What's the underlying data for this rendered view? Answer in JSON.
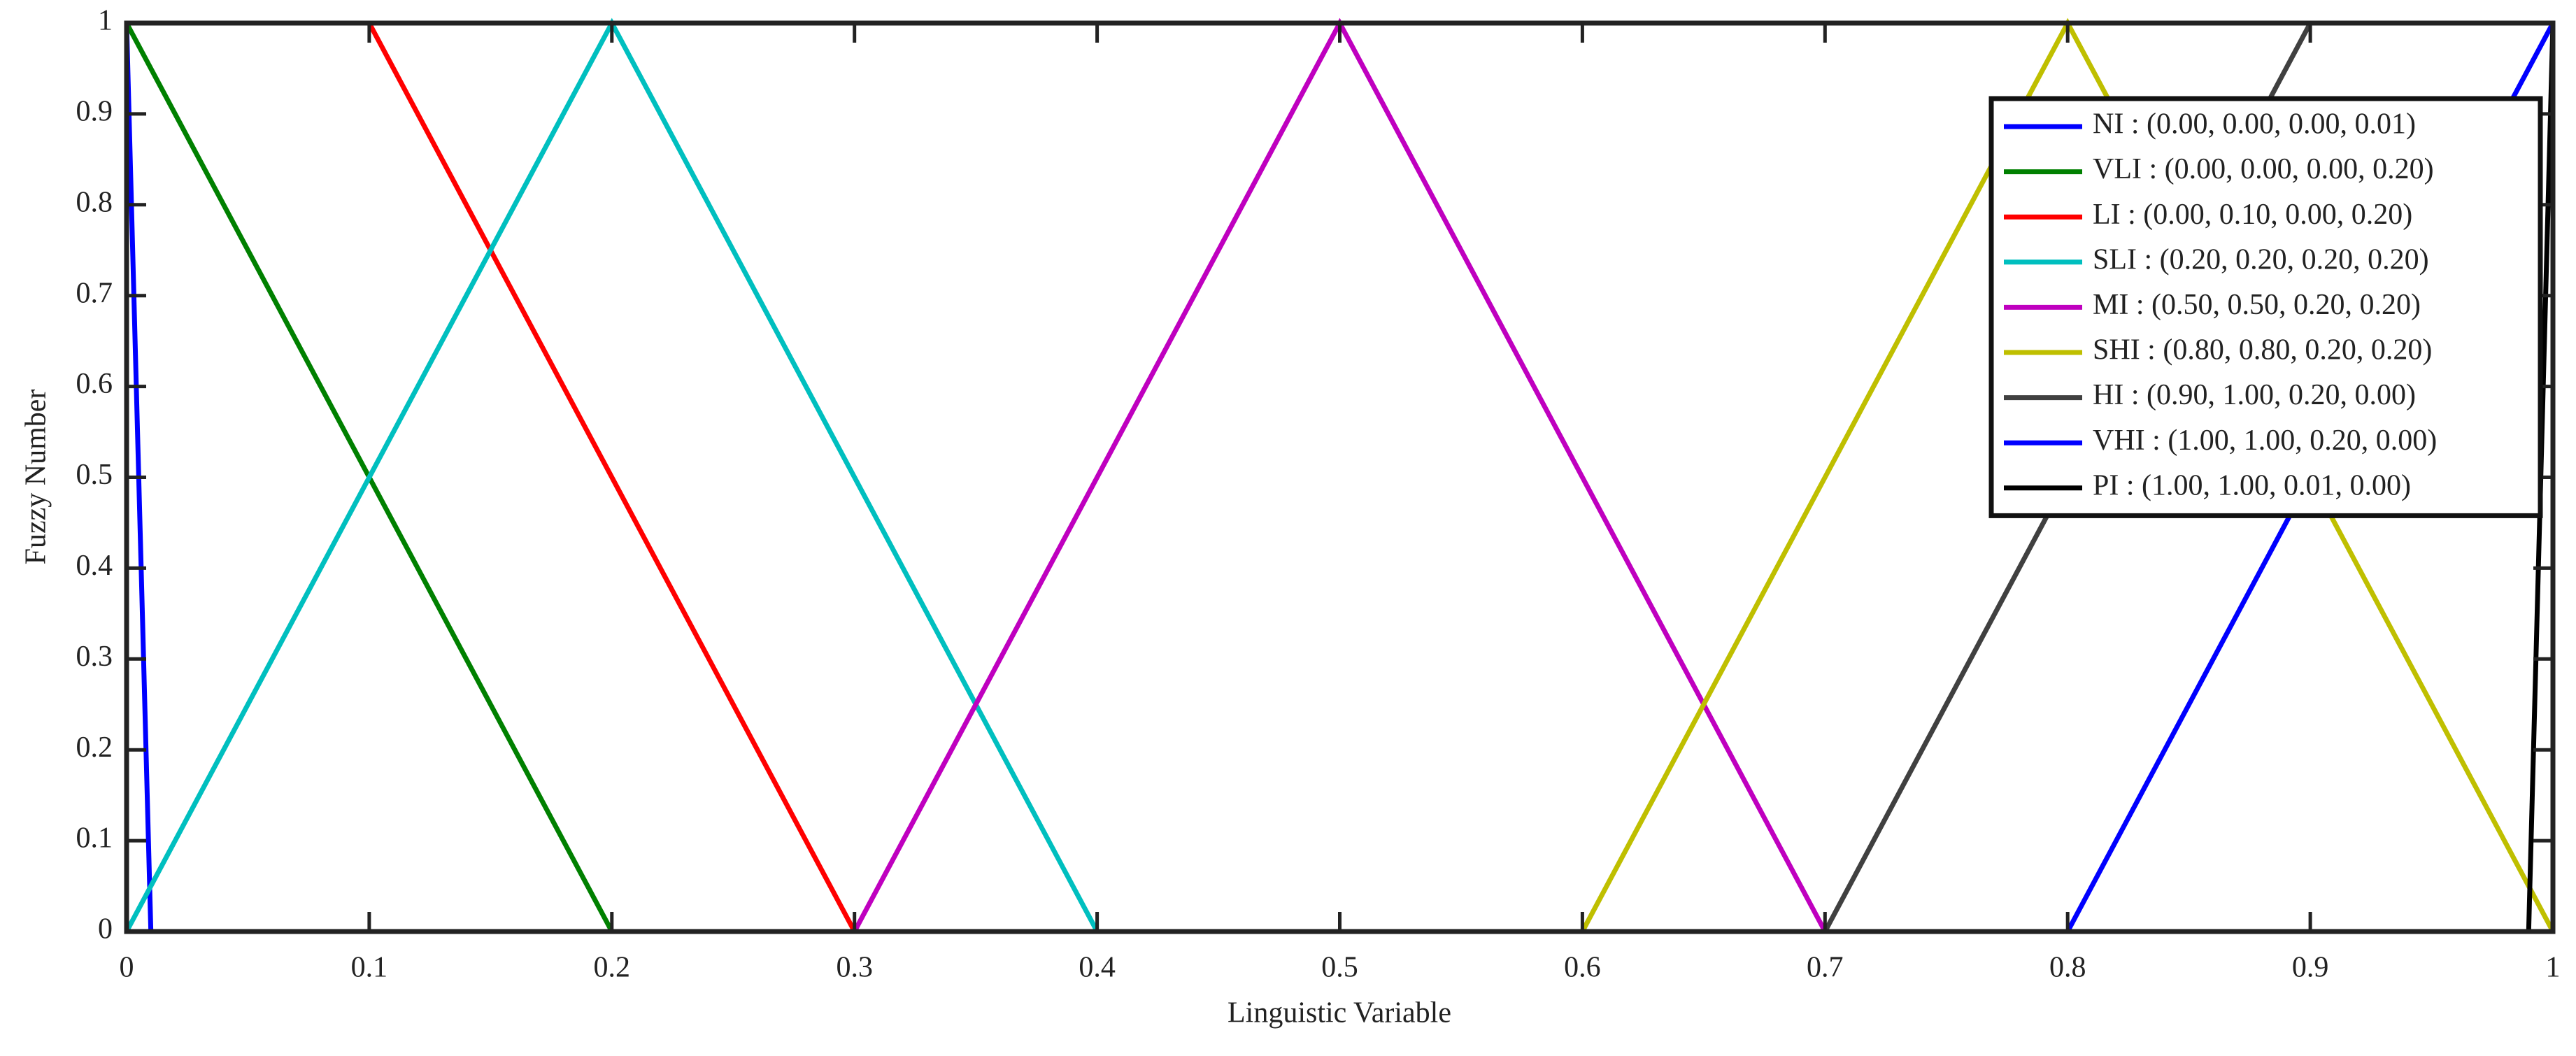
{
  "chart_data": {
    "type": "line",
    "xlabel": "Linguistic Variable",
    "ylabel": "Fuzzy Number",
    "xlim": [
      0,
      1
    ],
    "ylim": [
      0,
      1
    ],
    "xticks": [
      0,
      0.1,
      0.2,
      0.3,
      0.4,
      0.5,
      0.6,
      0.7,
      0.8,
      0.9,
      1
    ],
    "yticks": [
      0,
      0.1,
      0.2,
      0.3,
      0.4,
      0.5,
      0.6,
      0.7,
      0.8,
      0.9,
      1
    ],
    "legend": "upper right",
    "series": [
      {
        "name": "NI : (0.00, 0.00, 0.00, 0.01)",
        "color": "#0000ff",
        "x": [
          0,
          0.01
        ],
        "values": [
          1,
          0
        ]
      },
      {
        "name": "VLI : (0.00, 0.00, 0.00, 0.20)",
        "color": "#008000",
        "x": [
          0,
          0.2
        ],
        "values": [
          1,
          0
        ]
      },
      {
        "name": "LI : (0.00, 0.10, 0.00, 0.20)",
        "color": "#ff0000",
        "x": [
          0,
          0.1,
          0.3
        ],
        "values": [
          1,
          1,
          0
        ]
      },
      {
        "name": "SLI : (0.20, 0.20, 0.20, 0.20)",
        "color": "#00bfbf",
        "x": [
          0,
          0.2,
          0.4
        ],
        "values": [
          0,
          1,
          0
        ]
      },
      {
        "name": "MI : (0.50, 0.50, 0.20, 0.20)",
        "color": "#bf00bf",
        "x": [
          0.3,
          0.5,
          0.7
        ],
        "values": [
          0,
          1,
          0
        ]
      },
      {
        "name": "SHI : (0.80, 0.80, 0.20, 0.20)",
        "color": "#bfbf00",
        "x": [
          0.6,
          0.8,
          1
        ],
        "values": [
          0,
          1,
          0
        ]
      },
      {
        "name": "HI : (0.90, 1.00, 0.20, 0.00)",
        "color": "#404040",
        "x": [
          0.7,
          0.9,
          1
        ],
        "values": [
          0,
          1,
          1
        ]
      },
      {
        "name": "VHI : (1.00, 1.00, 0.20, 0.00)",
        "color": "#0000ff",
        "x": [
          0.8,
          1
        ],
        "values": [
          0,
          1
        ]
      },
      {
        "name": "PI : (1.00, 1.00, 0.01, 0.00)",
        "color": "#000000",
        "x": [
          0.99,
          1
        ],
        "values": [
          0,
          1
        ]
      }
    ]
  }
}
